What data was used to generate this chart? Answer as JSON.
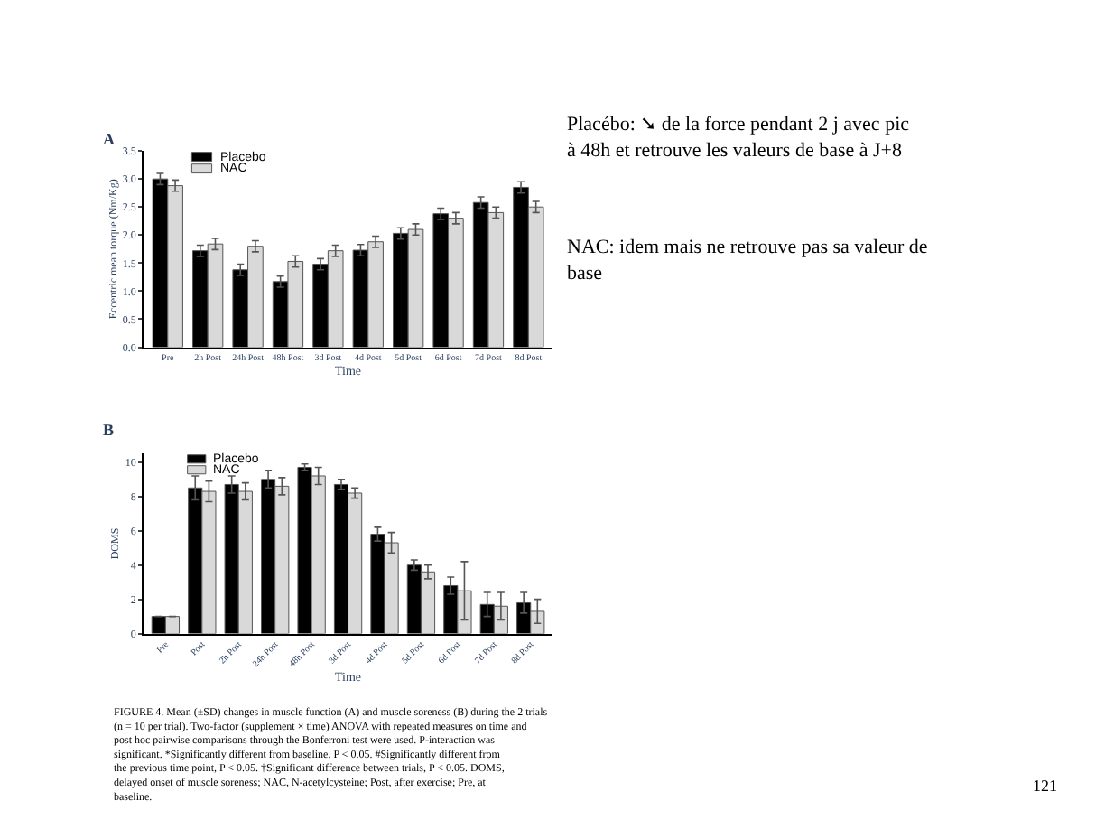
{
  "chart_data": [
    {
      "type": "bar",
      "title": "A",
      "xlabel": "Time",
      "ylabel": "Eccentric mean torque (Nm/Kg)",
      "categories": [
        "Pre",
        "2h Post",
        "24h Post",
        "48h Post",
        "3d Post",
        "4d Post",
        "5d Post",
        "6d Post",
        "7d Post",
        "8d Post"
      ],
      "series": [
        {
          "name": "Placebo",
          "color": "#000000",
          "values": [
            3.0,
            1.72,
            1.38,
            1.17,
            1.48,
            1.73,
            2.03,
            2.38,
            2.58,
            2.85
          ],
          "errors": [
            0.1,
            0.1,
            0.1,
            0.1,
            0.1,
            0.1,
            0.1,
            0.1,
            0.1,
            0.1
          ]
        },
        {
          "name": "NAC",
          "color": "#d9d9d9",
          "values": [
            2.88,
            1.84,
            1.8,
            1.53,
            1.72,
            1.88,
            2.1,
            2.3,
            2.4,
            2.5
          ],
          "errors": [
            0.1,
            0.1,
            0.1,
            0.1,
            0.1,
            0.1,
            0.1,
            0.1,
            0.1,
            0.1
          ]
        }
      ],
      "ylim": [
        0,
        3.5
      ],
      "yticks": [
        {
          "value": 0,
          "label": "0.0"
        },
        {
          "value": 0.5,
          "label": "0.5"
        },
        {
          "value": 1,
          "label": "1.0"
        },
        {
          "value": 1.5,
          "label": "1.5"
        },
        {
          "value": 2,
          "label": "2.0"
        },
        {
          "value": 2.5,
          "label": "2.5"
        },
        {
          "value": 3,
          "label": "3.0"
        },
        {
          "value": 3.5,
          "label": "3.5"
        }
      ],
      "legend": "top left"
    },
    {
      "type": "bar",
      "title": "B",
      "xlabel": "Time",
      "ylabel": "DOMS",
      "categories": [
        "Pre",
        "Post",
        "2h Post",
        "24h Post",
        "48h Post",
        "3d Post",
        "4d Post",
        "5d Post",
        "6d Post",
        "7d Post",
        "8d Post"
      ],
      "series": [
        {
          "name": "Placebo",
          "color": "#000000",
          "values": [
            1.0,
            8.5,
            8.7,
            9.0,
            9.7,
            8.7,
            5.8,
            4.0,
            2.8,
            1.7,
            1.8
          ],
          "errors": [
            null,
            0.7,
            0.5,
            0.5,
            0.2,
            0.3,
            0.4,
            0.3,
            0.5,
            0.7,
            0.6
          ]
        },
        {
          "name": "NAC",
          "color": "#d9d9d9",
          "values": [
            1.0,
            8.3,
            8.3,
            8.6,
            9.2,
            8.2,
            5.3,
            3.6,
            2.5,
            1.6,
            1.3
          ],
          "errors": [
            null,
            0.6,
            0.5,
            0.5,
            0.5,
            0.3,
            0.6,
            0.4,
            1.7,
            0.8,
            0.7
          ]
        }
      ],
      "ylim": [
        0,
        10.5
      ],
      "yticks": [
        0,
        2,
        4,
        6,
        8,
        10
      ],
      "legend": "top left"
    },
    {
      "type": "other",
      "annotations": [
        "Placébo: ➘ de la force pendant 2 j avec pic à 48h et retrouve les valeurs de base à J+8",
        "NAC: idem mais ne retrouve pas sa valeur de base",
        "FIGURE 4. Mean (±SD) changes in muscle function (A) and muscle soreness (B) during the 2 trials (n = 10 per trial). Two-factor (supplement × time) ANOVA with repeated measures on time and post hoc pairwise comparisons through the Bonferroni test were used. P-interaction was significant. *Significantly different from baseline, P < 0.05. #Significantly different from the previous time point, P < 0.05. †Significant difference between trials, P < 0.05. DOMS, delayed onset of muscle soreness; NAC, N-acetylcysteine; Post, after exercise; Pre, at baseline.",
        "121"
      ]
    }
  ]
}
